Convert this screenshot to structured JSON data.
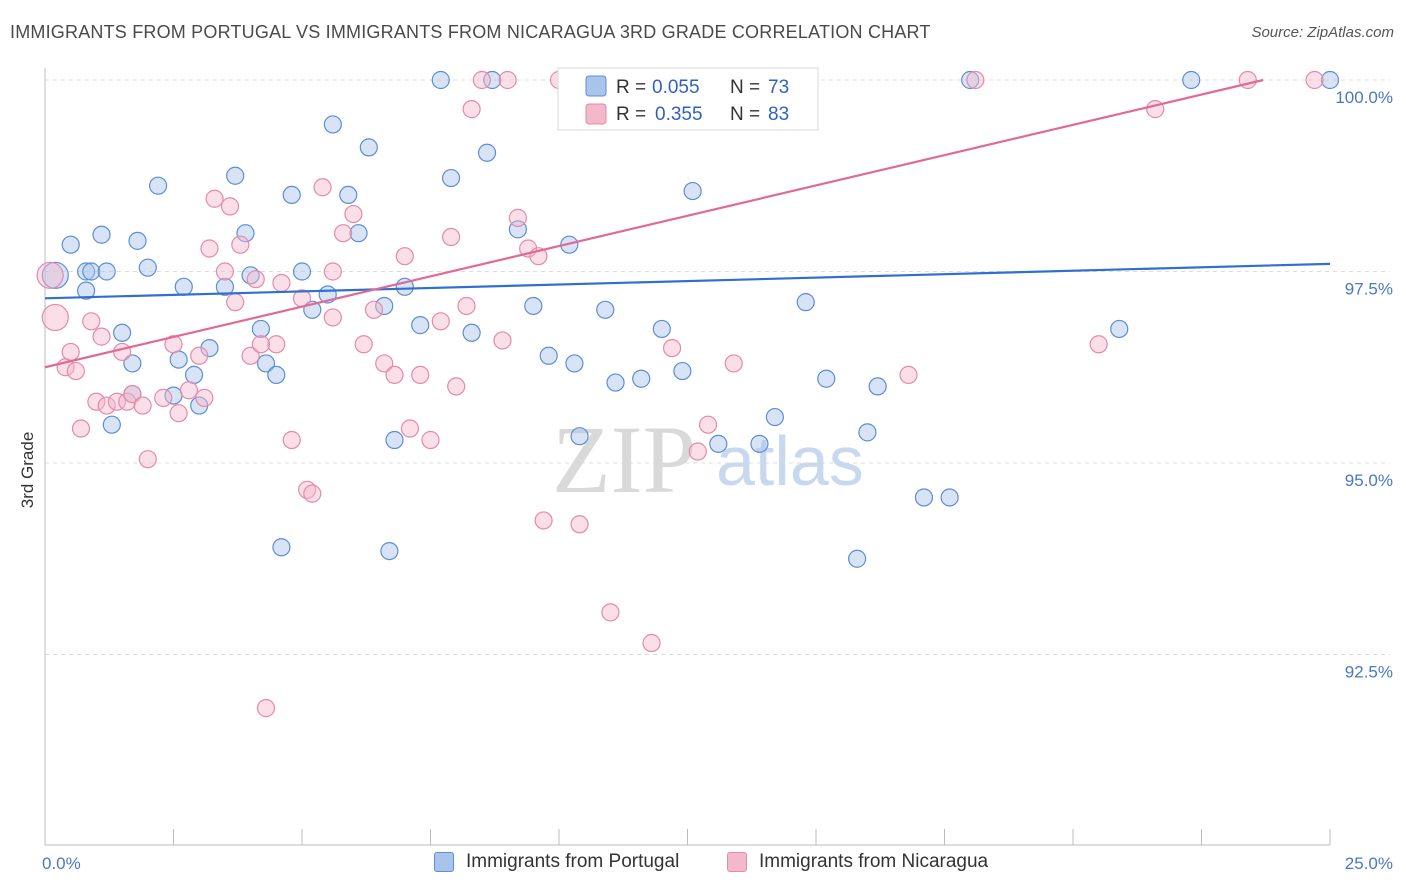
{
  "title": "IMMIGRANTS FROM PORTUGAL VS IMMIGRANTS FROM NICARAGUA 3RD GRADE CORRELATION CHART",
  "source": "Source: ZipAtlas.com",
  "watermark": {
    "zip": "ZIP",
    "atlas": "atlas"
  },
  "colors": {
    "blue_fill": "#a9c4ea",
    "blue_stroke": "#5b8ed6",
    "blue_line": "#2f6fd0",
    "pink_fill": "#f4b8cb",
    "pink_stroke": "#e58aa8",
    "pink_line": "#e06a94",
    "grid": "#dcdcdc",
    "tick_text": "#4a78c4"
  },
  "legend": {
    "rows": [
      {
        "r_label": "R = ",
        "r_value": "0.055",
        "n_label": "N = ",
        "n_value": "73"
      },
      {
        "r_label": "R = ",
        "r_value": "0.355",
        "n_label": "N = ",
        "n_value": "83"
      }
    ]
  },
  "bottom_legend": [
    "Immigrants from Portugal",
    "Immigrants from Nicaragua"
  ],
  "chart_data": {
    "type": "scatter",
    "title": "IMMIGRANTS FROM PORTUGAL VS IMMIGRANTS FROM NICARAGUA 3RD GRADE CORRELATION CHART",
    "xlabel": "",
    "ylabel": "3rd Grade",
    "xlim": [
      0,
      25
    ],
    "ylim": [
      90.0,
      100.2
    ],
    "x_tick_labels": [
      "0.0%",
      "25.0%"
    ],
    "y_ticks": [
      92.5,
      95.0,
      97.5,
      100.0
    ],
    "y_tick_labels": [
      "92.5%",
      "95.0%",
      "97.5%",
      "100.0%"
    ],
    "grid": true,
    "legend_placement": "top-center",
    "series": [
      {
        "name": "Immigrants from Portugal",
        "r": 0.055,
        "n": 73,
        "trend": {
          "x": [
            0,
            25
          ],
          "y": [
            97.15,
            97.6
          ]
        },
        "points": [
          [
            0.2,
            97.45
          ],
          [
            0.5,
            97.85
          ],
          [
            0.8,
            97.5
          ],
          [
            1.1,
            97.98
          ],
          [
            0.9,
            97.5
          ],
          [
            1.2,
            97.5
          ],
          [
            0.8,
            97.25
          ],
          [
            1.5,
            96.7
          ],
          [
            1.7,
            96.3
          ],
          [
            1.8,
            97.9
          ],
          [
            2.0,
            97.55
          ],
          [
            2.2,
            98.62
          ],
          [
            1.3,
            95.5
          ],
          [
            1.7,
            95.9
          ],
          [
            2.5,
            95.88
          ],
          [
            2.7,
            97.3
          ],
          [
            2.6,
            96.35
          ],
          [
            2.9,
            96.15
          ],
          [
            3.0,
            95.75
          ],
          [
            3.2,
            96.5
          ],
          [
            3.7,
            98.75
          ],
          [
            3.9,
            98.0
          ],
          [
            4.0,
            97.45
          ],
          [
            4.2,
            96.75
          ],
          [
            4.3,
            96.3
          ],
          [
            4.5,
            96.15
          ],
          [
            4.8,
            98.5
          ],
          [
            5.0,
            97.5
          ],
          [
            5.2,
            97.0
          ],
          [
            5.5,
            97.2
          ],
          [
            5.6,
            99.42
          ],
          [
            5.9,
            98.5
          ],
          [
            6.1,
            98.0
          ],
          [
            6.3,
            99.12
          ],
          [
            6.6,
            97.05
          ],
          [
            6.8,
            95.3
          ],
          [
            7.0,
            97.3
          ],
          [
            7.3,
            96.8
          ],
          [
            7.9,
            98.72
          ],
          [
            8.3,
            96.7
          ],
          [
            8.6,
            99.05
          ],
          [
            9.2,
            98.05
          ],
          [
            9.5,
            97.05
          ],
          [
            9.8,
            96.4
          ],
          [
            10.2,
            97.85
          ],
          [
            10.4,
            95.35
          ],
          [
            10.9,
            97.0
          ],
          [
            11.1,
            96.05
          ],
          [
            11.6,
            96.1
          ],
          [
            12.0,
            96.75
          ],
          [
            12.4,
            96.2
          ],
          [
            12.6,
            98.55
          ],
          [
            13.1,
            95.25
          ],
          [
            14.2,
            95.6
          ],
          [
            14.8,
            97.1
          ],
          [
            15.2,
            96.1
          ],
          [
            15.8,
            93.75
          ],
          [
            16.0,
            95.4
          ],
          [
            16.2,
            96.0
          ],
          [
            17.1,
            94.55
          ],
          [
            17.6,
            94.55
          ],
          [
            18.0,
            100.0
          ],
          [
            22.3,
            100.0
          ],
          [
            25.0,
            100.0
          ],
          [
            12.9,
            100.0
          ],
          [
            8.7,
            100.0
          ],
          [
            7.7,
            100.0
          ],
          [
            4.6,
            93.9
          ],
          [
            6.7,
            93.85
          ],
          [
            10.3,
            96.3
          ],
          [
            20.9,
            96.75
          ],
          [
            13.9,
            95.25
          ],
          [
            3.5,
            97.3
          ]
        ]
      },
      {
        "name": "Immigrants from Nicaragua",
        "r": 0.355,
        "n": 83,
        "trend": {
          "x": [
            0,
            23.7
          ],
          "y": [
            96.25,
            100.0
          ]
        },
        "points": [
          [
            0.1,
            97.45
          ],
          [
            0.2,
            96.9
          ],
          [
            0.4,
            96.25
          ],
          [
            0.5,
            96.45
          ],
          [
            0.6,
            96.2
          ],
          [
            0.7,
            95.45
          ],
          [
            0.9,
            96.85
          ],
          [
            1.0,
            95.8
          ],
          [
            1.1,
            96.65
          ],
          [
            1.2,
            95.75
          ],
          [
            1.4,
            95.8
          ],
          [
            1.5,
            96.45
          ],
          [
            1.6,
            95.8
          ],
          [
            1.7,
            95.9
          ],
          [
            1.9,
            95.75
          ],
          [
            2.0,
            95.05
          ],
          [
            2.3,
            95.85
          ],
          [
            2.5,
            96.55
          ],
          [
            2.6,
            95.65
          ],
          [
            2.8,
            95.95
          ],
          [
            3.0,
            96.4
          ],
          [
            3.1,
            95.85
          ],
          [
            3.2,
            97.8
          ],
          [
            3.3,
            98.45
          ],
          [
            3.5,
            97.5
          ],
          [
            3.6,
            98.35
          ],
          [
            3.7,
            97.1
          ],
          [
            3.8,
            97.85
          ],
          [
            4.0,
            96.4
          ],
          [
            4.1,
            97.4
          ],
          [
            4.3,
            91.8
          ],
          [
            4.5,
            96.55
          ],
          [
            4.6,
            97.35
          ],
          [
            4.8,
            95.3
          ],
          [
            5.0,
            97.15
          ],
          [
            5.1,
            94.65
          ],
          [
            5.2,
            94.6
          ],
          [
            5.4,
            98.6
          ],
          [
            5.6,
            97.5
          ],
          [
            5.8,
            98.0
          ],
          [
            6.0,
            98.25
          ],
          [
            6.2,
            96.55
          ],
          [
            6.4,
            97.0
          ],
          [
            6.6,
            96.3
          ],
          [
            6.8,
            96.15
          ],
          [
            7.0,
            97.7
          ],
          [
            7.1,
            95.45
          ],
          [
            7.3,
            96.15
          ],
          [
            7.5,
            95.3
          ],
          [
            7.7,
            96.85
          ],
          [
            7.9,
            97.95
          ],
          [
            8.0,
            96.0
          ],
          [
            8.2,
            97.05
          ],
          [
            8.3,
            99.62
          ],
          [
            8.5,
            100.0
          ],
          [
            8.9,
            96.6
          ],
          [
            9.0,
            100.0
          ],
          [
            9.2,
            98.2
          ],
          [
            9.4,
            97.8
          ],
          [
            9.6,
            97.7
          ],
          [
            9.7,
            94.25
          ],
          [
            10.0,
            100.0
          ],
          [
            10.4,
            94.2
          ],
          [
            10.7,
            100.0
          ],
          [
            11.0,
            93.05
          ],
          [
            11.5,
            100.0
          ],
          [
            11.8,
            92.65
          ],
          [
            12.2,
            96.5
          ],
          [
            12.7,
            95.15
          ],
          [
            12.9,
            95.5
          ],
          [
            13.4,
            96.3
          ],
          [
            13.9,
            99.82
          ],
          [
            14.5,
            100.0
          ],
          [
            16.8,
            96.15
          ],
          [
            18.1,
            100.0
          ],
          [
            20.5,
            96.55
          ],
          [
            21.6,
            99.62
          ],
          [
            23.4,
            100.0
          ],
          [
            24.7,
            100.0
          ],
          [
            5.6,
            96.9
          ],
          [
            10.9,
            100.0
          ],
          [
            14.1,
            100.0
          ],
          [
            4.2,
            96.55
          ]
        ]
      }
    ]
  }
}
